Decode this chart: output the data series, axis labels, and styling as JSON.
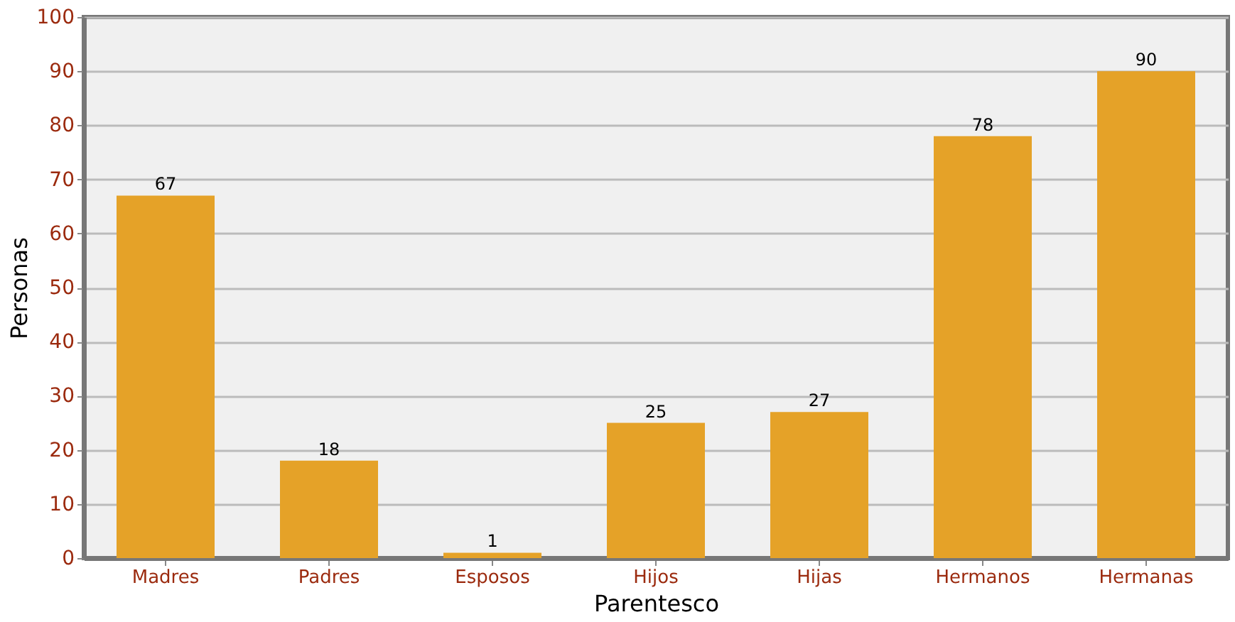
{
  "chart_data": {
    "type": "bar",
    "xlabel": "Parentesco",
    "ylabel": "Personas",
    "categories": [
      "Madres",
      "Padres",
      "Esposos",
      "Hijos",
      "Hijas",
      "Hermanos",
      "Hermanas"
    ],
    "values": [
      67,
      18,
      1,
      25,
      27,
      78,
      90
    ],
    "color": "#e5a228",
    "ylim": [
      0,
      100
    ],
    "yticks": [
      0,
      10,
      20,
      30,
      40,
      50,
      60,
      70,
      80,
      90,
      100
    ],
    "grid": "y",
    "data_labels": true
  }
}
